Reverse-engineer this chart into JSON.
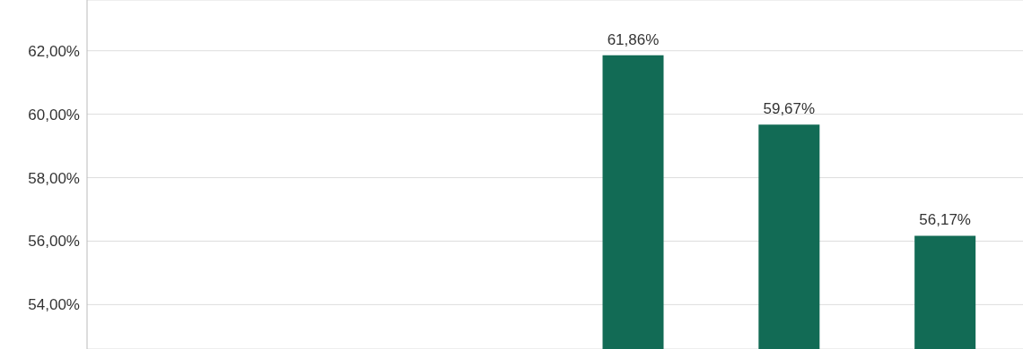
{
  "chart_data": {
    "type": "bar",
    "categories": [
      null,
      null,
      null,
      null,
      null,
      null
    ],
    "values": [
      null,
      null,
      null,
      61.86,
      59.67,
      56.17
    ],
    "value_labels": [
      null,
      null,
      null,
      "61,86%",
      "59,67%",
      "56,17%"
    ],
    "color": "#126b55",
    "ylim": [
      52.6,
      63.6
    ],
    "yticks": [
      {
        "value": 54,
        "label": "54,00%"
      },
      {
        "value": 56,
        "label": "56,00%"
      },
      {
        "value": 58,
        "label": "58,00%"
      },
      {
        "value": 60,
        "label": "60,00%"
      },
      {
        "value": 62,
        "label": "62,00%"
      }
    ],
    "grid": "y",
    "legend": false
  }
}
